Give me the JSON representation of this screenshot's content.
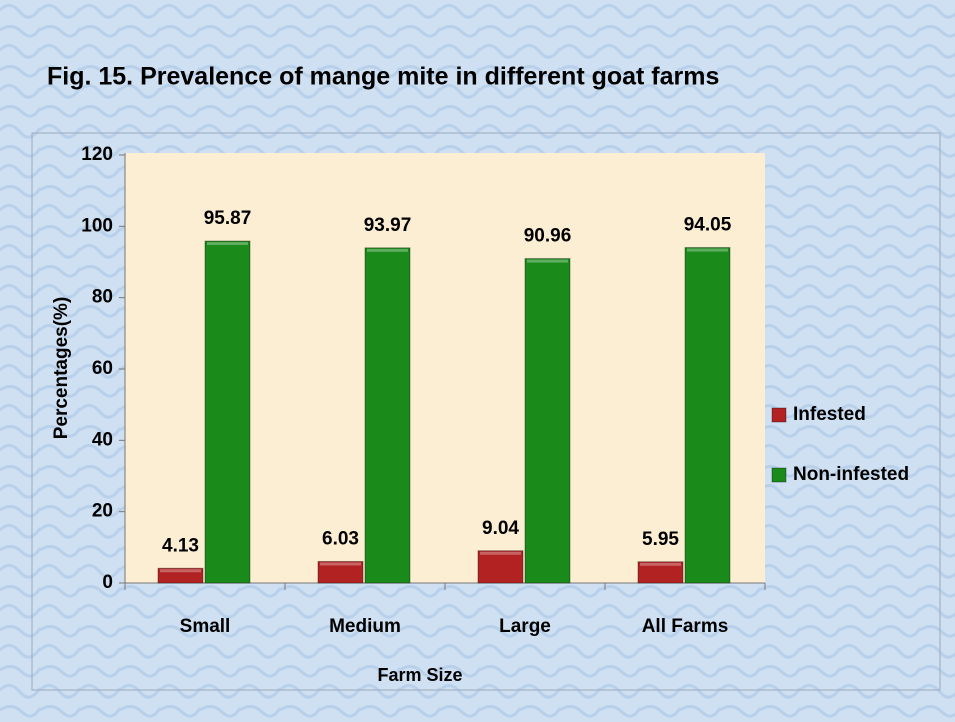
{
  "chart_data": {
    "type": "bar",
    "title": "Fig. 15. Prevalence of mange mite in different goat farms",
    "x_label": "Farm Size",
    "y_label": "Percentages(%)",
    "categories": [
      "Small",
      "Medium",
      "Large",
      "All Farms"
    ],
    "series": [
      {
        "name": "Infested",
        "color": "#b22222",
        "values": [
          4.13,
          6.03,
          9.04,
          5.95
        ]
      },
      {
        "name": "Non-infested",
        "color": "#1a8a1a",
        "values": [
          95.87,
          93.97,
          90.96,
          94.05
        ]
      }
    ],
    "ylim": [
      0,
      120
    ],
    "yticks": [
      0,
      20,
      40,
      60,
      80,
      100,
      120
    ],
    "legend": "right"
  }
}
